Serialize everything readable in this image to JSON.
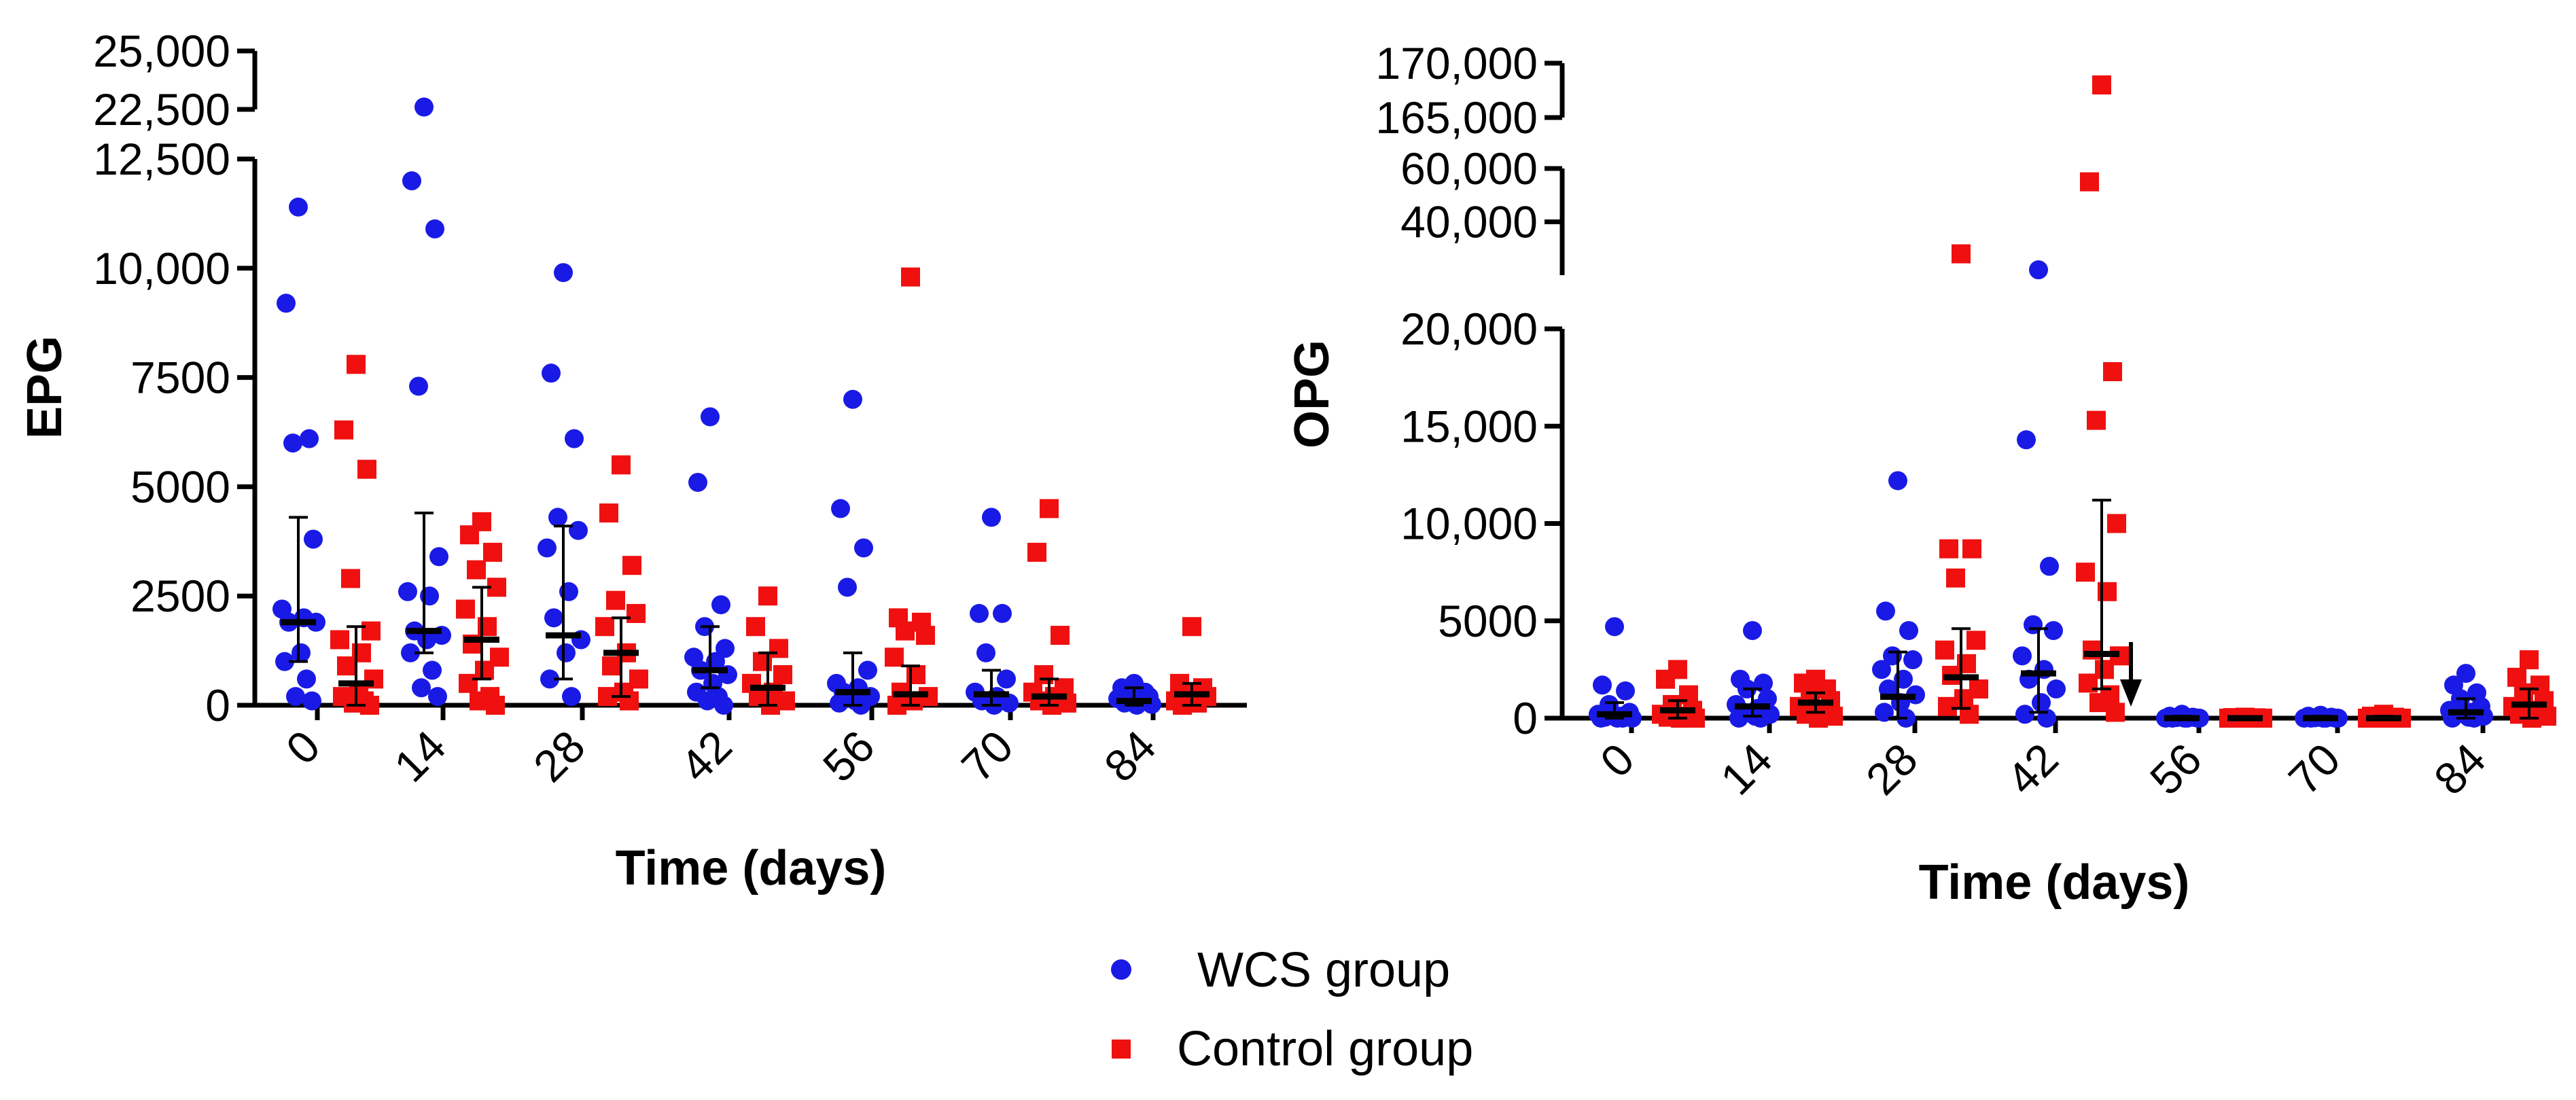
{
  "chart_data": [
    {
      "type": "scatter",
      "title": "",
      "xlabel": "Time (days)",
      "ylabel": "EPG",
      "categories": [
        "0",
        "14",
        "28",
        "42",
        "56",
        "70",
        "84"
      ],
      "y_segments": [
        {
          "range": [
            0,
            12500
          ],
          "ticks": [
            0,
            2500,
            5000,
            7500,
            10000,
            12500
          ],
          "tick_labels": [
            "0",
            "2500",
            "5000",
            "7500",
            "10,000",
            "12,500"
          ]
        },
        {
          "range": [
            22500,
            25000
          ],
          "ticks": [
            22500,
            25000
          ],
          "tick_labels": [
            "22,500",
            "25,000"
          ]
        }
      ],
      "series": [
        {
          "name": "WCS group",
          "color": "#1a1ae6",
          "marker": "circle",
          "points": [
            [
              11400,
              9200,
              6100,
              6000,
              3800,
              2200,
              2000,
              1900,
              1900,
              1200,
              1000,
              600,
              200,
              100
            ],
            [
              22600,
              12000,
              10900,
              7300,
              3400,
              2600,
              2500,
              1700,
              1600,
              1500,
              1200,
              800,
              400,
              200
            ],
            [
              9900,
              7600,
              6100,
              4300,
              4000,
              3600,
              2600,
              2000,
              1500,
              1200,
              600,
              200
            ],
            [
              6600,
              5100,
              2300,
              1800,
              1300,
              1100,
              1000,
              800,
              700,
              500,
              300,
              200,
              100,
              0
            ],
            [
              7000,
              4500,
              3600,
              2700,
              800,
              500,
              400,
              300,
              200,
              100,
              50,
              0
            ],
            [
              4300,
              2100,
              2100,
              1200,
              600,
              300,
              200,
              100,
              50,
              0
            ],
            [
              500,
              400,
              300,
              250,
              200,
              150,
              100,
              50,
              20,
              0
            ]
          ],
          "median": [
            1900,
            1700,
            1600,
            800,
            300,
            250,
            100
          ],
          "error_low": [
            1000,
            1200,
            600,
            400,
            0,
            0,
            0
          ],
          "error_high": [
            4300,
            4400,
            4100,
            1800,
            1200,
            800,
            400
          ]
        },
        {
          "name": "Control group",
          "color": "#f01010",
          "marker": "square",
          "points": [
            [
              7800,
              6300,
              5400,
              2900,
              1700,
              1500,
              1200,
              900,
              600,
              300,
              200,
              100,
              50,
              0
            ],
            [
              4200,
              3900,
              3500,
              3100,
              2700,
              2200,
              1800,
              1400,
              1100,
              800,
              500,
              200,
              100,
              0
            ],
            [
              5500,
              4400,
              3200,
              2400,
              2100,
              1800,
              1200,
              900,
              600,
              300,
              200,
              100
            ],
            [
              2500,
              1800,
              1300,
              1000,
              700,
              500,
              300,
              200,
              100,
              0
            ],
            [
              9800,
              2000,
              1900,
              1700,
              1600,
              1100,
              700,
              300,
              200,
              100,
              0
            ],
            [
              4500,
              3500,
              1600,
              700,
              400,
              300,
              200,
              100,
              50,
              0
            ],
            [
              1800,
              500,
              400,
              300,
              200,
              100,
              50,
              0
            ]
          ],
          "median": [
            500,
            1500,
            1200,
            400,
            250,
            200,
            250
          ],
          "error_low": [
            0,
            600,
            200,
            0,
            0,
            0,
            0
          ],
          "error_high": [
            1800,
            2700,
            2000,
            1200,
            900,
            600,
            500
          ]
        }
      ]
    },
    {
      "type": "scatter",
      "title": "",
      "xlabel": "Time (days)",
      "ylabel": "OPG",
      "categories": [
        "0",
        "14",
        "28",
        "42",
        "56",
        "70",
        "84"
      ],
      "y_segments": [
        {
          "range": [
            0,
            20000
          ],
          "ticks": [
            0,
            5000,
            10000,
            15000,
            20000
          ],
          "tick_labels": [
            "0",
            "5000",
            "10,000",
            "15,000",
            "20,000"
          ]
        },
        {
          "range": [
            20000,
            60000
          ],
          "ticks": [
            20000,
            40000,
            60000
          ],
          "tick_labels": [
            "20,000",
            "40,000",
            "60,000"
          ]
        },
        {
          "range": [
            165000,
            170000
          ],
          "ticks": [
            165000,
            170000
          ],
          "tick_labels": [
            "165,000",
            "170,000"
          ]
        }
      ],
      "annotation": {
        "type": "arrow-down",
        "category_index": 4,
        "position": "left of day 56"
      },
      "series": [
        {
          "name": "WCS group",
          "color": "#1a1ae6",
          "marker": "circle",
          "points": [
            [
              4700,
              1700,
              1400,
              700,
              300,
              200,
              100,
              50,
              0,
              0,
              0,
              0
            ],
            [
              4500,
              2000,
              1800,
              1500,
              1000,
              700,
              500,
              300,
              200,
              100,
              0,
              0
            ],
            [
              12200,
              5500,
              4500,
              3200,
              3000,
              2500,
              2000,
              1500,
              1200,
              800,
              300,
              0
            ],
            [
              22000,
              14300,
              7800,
              4800,
              4500,
              3200,
              2500,
              2000,
              1500,
              800,
              200,
              0
            ],
            [
              200,
              100,
              50,
              30,
              10,
              0,
              0,
              0,
              0,
              0
            ],
            [
              150,
              100,
              50,
              20,
              0,
              0,
              0,
              0,
              0,
              0
            ],
            [
              2300,
              1700,
              1300,
              1000,
              600,
              400,
              300,
              200,
              100,
              50,
              0,
              0
            ]
          ],
          "median": [
            200,
            600,
            1100,
            2300,
            0,
            0,
            300
          ],
          "error_low": [
            0,
            100,
            0,
            300,
            0,
            0,
            0
          ],
          "error_high": [
            800,
            1500,
            3400,
            4600,
            100,
            100,
            1000
          ]
        },
        {
          "name": "Control group",
          "color": "#f01010",
          "marker": "square",
          "points": [
            [
              2500,
              2000,
              1200,
              700,
              400,
              200,
              100,
              50,
              0,
              0
            ],
            [
              2000,
              1800,
              1500,
              1200,
              900,
              600,
              400,
              200,
              100,
              0
            ],
            [
              28000,
              8700,
              8700,
              7200,
              4000,
              3500,
              2800,
              2200,
              1500,
              1000,
              600,
              200
            ],
            [
              168000,
              55000,
              17800,
              15300,
              10000,
              7500,
              6500,
              3500,
              3200,
              2500,
              1800,
              1200,
              800,
              300
            ],
            [
              50,
              30,
              20,
              10,
              0,
              0,
              0,
              0,
              0,
              0
            ],
            [
              200,
              100,
              50,
              20,
              0,
              0,
              0,
              0,
              0,
              0
            ],
            [
              3000,
              2100,
              1700,
              1300,
              900,
              600,
              400,
              200,
              100,
              0
            ]
          ],
          "median": [
            400,
            800,
            2100,
            3300,
            0,
            0,
            700
          ],
          "error_low": [
            0,
            300,
            500,
            1500,
            0,
            0,
            0
          ],
          "error_high": [
            900,
            1300,
            4600,
            11200,
            50,
            100,
            1500
          ]
        }
      ]
    }
  ],
  "legend": {
    "position": "bottom-center",
    "items": [
      {
        "label": "WCS group",
        "color": "#1a1ae6",
        "marker": "circle"
      },
      {
        "label": "Control group",
        "color": "#f01010",
        "marker": "square"
      }
    ]
  }
}
